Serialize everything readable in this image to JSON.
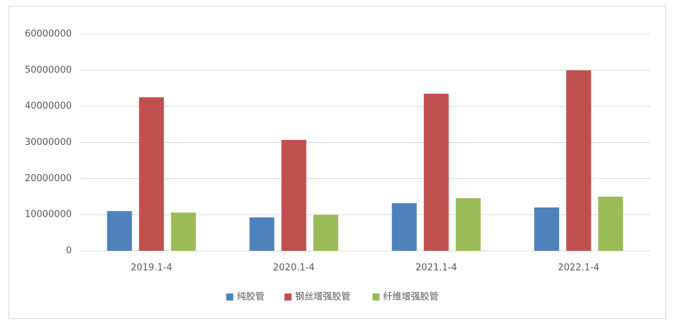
{
  "chart_data": {
    "type": "bar",
    "categories": [
      "2019.1-4",
      "2020.1-4",
      "2021.1-4",
      "2022.1-4"
    ],
    "series": [
      {
        "name": "纯胶管",
        "color": "#4f81bd",
        "values": [
          11000000,
          9250000,
          13200000,
          12000000
        ]
      },
      {
        "name": "钢丝增强胶管",
        "color": "#c0504d",
        "values": [
          42500000,
          30700000,
          43500000,
          50000000
        ]
      },
      {
        "name": "纤维增强胶管",
        "color": "#9bbb59",
        "values": [
          10600000,
          10000000,
          14600000,
          15000000
        ]
      }
    ],
    "ylim": [
      0,
      60000000
    ],
    "yticks": [
      0,
      10000000,
      20000000,
      30000000,
      40000000,
      50000000,
      60000000
    ],
    "grid": true,
    "legend": "bottom"
  }
}
